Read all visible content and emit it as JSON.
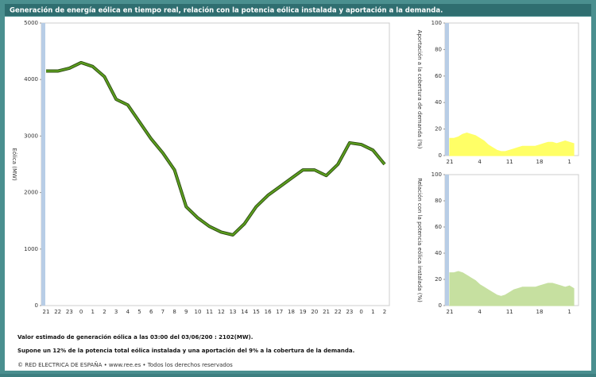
{
  "header": {
    "title": "Generación de energía eólica en tiempo real, relación con la potencia eólica instalada y aportación a la demanda."
  },
  "footer": {
    "estimate": "Valor estimado de generación eólica  a las  03:00 del 03/06/200 : 2102(MW).",
    "summary": "Supone un 12% de la potencia total eólica instalada y una aportación del 9% a la cobertura de la demanda.",
    "copyright": "© RED ELECTRICA DE ESPAÑA • www.ree.es • Todos los derechos reservados"
  },
  "chart_data": [
    {
      "type": "line",
      "y_label": "Eólica (MW)",
      "color": "#5c9e1e",
      "grid": false,
      "categories": [
        "21",
        "22",
        "23",
        "0",
        "1",
        "2",
        "3",
        "4",
        "5",
        "6",
        "7",
        "8",
        "9",
        "10",
        "11",
        "12",
        "13",
        "14",
        "15",
        "16",
        "17",
        "18",
        "19",
        "20",
        "21",
        "22",
        "23",
        "0",
        "1",
        "2"
      ],
      "values": [
        4150,
        4150,
        4200,
        4300,
        4230,
        4050,
        3650,
        3550,
        3250,
        2950,
        2700,
        2400,
        1750,
        1550,
        1400,
        1300,
        1250,
        1450,
        1750,
        1950,
        2100,
        2250,
        2400,
        2400,
        2300,
        2500,
        2880,
        2850,
        2750,
        2500
      ],
      "ylim": [
        0,
        5000
      ],
      "yticks": [
        0,
        1000,
        2000,
        3000,
        4000,
        5000
      ]
    },
    {
      "type": "area",
      "y_label": "Aportación a la cobertura de demanda (%)",
      "color": "#ffff66",
      "grid": false,
      "categories": [
        "21",
        null,
        null,
        null,
        null,
        null,
        null,
        "4",
        null,
        null,
        null,
        null,
        null,
        null,
        "11",
        null,
        null,
        null,
        null,
        null,
        null,
        "18",
        null,
        null,
        null,
        null,
        null,
        null,
        "1",
        null
      ],
      "values": [
        13,
        13,
        14,
        16,
        17,
        16,
        15,
        13,
        11,
        8,
        6,
        4,
        3,
        3,
        4,
        5,
        6,
        7,
        7,
        7,
        7,
        8,
        9,
        10,
        10,
        9,
        10,
        11,
        10,
        9
      ],
      "ylim": [
        0,
        100
      ],
      "yticks": [
        0,
        20,
        40,
        60,
        80,
        100
      ]
    },
    {
      "type": "area",
      "y_label": "Relación con la potencia eólica instalada (%)",
      "color": "#c6e0a0",
      "grid": false,
      "categories": [
        "21",
        null,
        null,
        null,
        null,
        null,
        null,
        "4",
        null,
        null,
        null,
        null,
        null,
        null,
        "11",
        null,
        null,
        null,
        null,
        null,
        null,
        "18",
        null,
        null,
        null,
        null,
        null,
        null,
        "1",
        null
      ],
      "values": [
        25,
        25,
        26,
        25,
        23,
        21,
        19,
        16,
        14,
        12,
        10,
        8,
        7,
        8,
        10,
        12,
        13,
        14,
        14,
        14,
        14,
        15,
        16,
        17,
        17,
        16,
        15,
        14,
        15,
        13
      ],
      "ylim": [
        0,
        100
      ],
      "yticks": [
        0,
        20,
        40,
        60,
        80,
        100
      ]
    }
  ]
}
